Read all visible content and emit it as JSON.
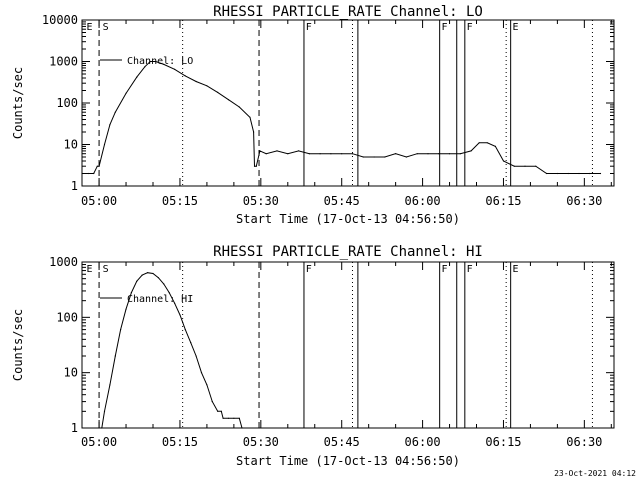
{
  "chart_data": [
    {
      "type": "line",
      "title": "RHESSI PARTICLE_RATE Channel: LO",
      "xlabel": "Start Time (17-Oct-13 04:56:50)",
      "ylabel": "Counts/sec",
      "yscale": "log",
      "ylim": [
        1,
        10000
      ],
      "xlim": [
        "04:56:50",
        "06:35:30"
      ],
      "yticks": [
        "1",
        "10",
        "100",
        "1000",
        "10000"
      ],
      "xticks": [
        "05:00",
        "05:15",
        "05:30",
        "05:45",
        "06:00",
        "06:15",
        "06:30"
      ],
      "series": [
        {
          "name": "Channel: LO",
          "x": [
            "04:56:50",
            "04:58:00",
            "04:59:00",
            "04:59:40",
            "05:00:00",
            "05:01:00",
            "05:02:00",
            "05:03:00",
            "05:05:00",
            "05:07:00",
            "05:08:30",
            "05:09:30",
            "05:10:30",
            "05:12:00",
            "05:14:00",
            "05:16:00",
            "05:18:00",
            "05:20:00",
            "05:22:00",
            "05:24:00",
            "05:26:00",
            "05:28:00",
            "05:28:40",
            "05:28:50",
            "05:29:10",
            "05:29:50",
            "05:31:00",
            "05:33:00",
            "05:35:00",
            "05:37:00",
            "05:39:00",
            "05:41:00",
            "05:43:00",
            "05:45:00",
            "05:47:00",
            "05:49:00",
            "05:51:00",
            "05:53:00",
            "05:55:00",
            "05:57:00",
            "05:59:00",
            "06:01:00",
            "06:03:00",
            "06:05:00",
            "06:07:00",
            "06:09:00",
            "06:10:30",
            "06:12:00",
            "06:13:30",
            "06:15:00",
            "06:17:00",
            "06:19:00",
            "06:21:00",
            "06:23:00",
            "06:25:00",
            "06:27:00",
            "06:29:00",
            "06:31:00",
            "06:33:00"
          ],
          "y": [
            2,
            2,
            2,
            3,
            3,
            10,
            30,
            60,
            170,
            420,
            750,
            1000,
            1000,
            850,
            650,
            450,
            330,
            260,
            180,
            120,
            80,
            45,
            20,
            3,
            3,
            7,
            6,
            7,
            6,
            7,
            6,
            6,
            6,
            6,
            6,
            5,
            5,
            5,
            6,
            5,
            6,
            6,
            6,
            6,
            6,
            7,
            11,
            11,
            9,
            4,
            3,
            3,
            3,
            2,
            2,
            2,
            2,
            2,
            2
          ]
        }
      ],
      "markers": {
        "dashed": [
          "05:00:00",
          "05:29:40"
        ],
        "dotted": [
          "05:15:30",
          "05:47:00",
          "06:15:30",
          "06:31:30"
        ],
        "solid": [
          "05:38:00",
          "05:48:00",
          "06:03:10",
          "06:06:20",
          "06:07:50",
          "06:16:20"
        ],
        "labels": [
          {
            "text": "E",
            "at": "04:57:40"
          },
          {
            "text": "S",
            "at": "05:00:40"
          },
          {
            "text": "F",
            "at": "05:38:20"
          },
          {
            "text": "F",
            "at": "06:03:30"
          },
          {
            "text": "F",
            "at": "06:08:10"
          },
          {
            "text": "E",
            "at": "06:16:40"
          }
        ]
      },
      "legend": {
        "placement": "top-left",
        "label": "Channel: LO"
      }
    },
    {
      "type": "line",
      "title": "RHESSI PARTICLE_RATE Channel: HI",
      "xlabel": "Start Time (17-Oct-13 04:56:50)",
      "ylabel": "Counts/sec",
      "yscale": "log",
      "ylim": [
        1,
        1000
      ],
      "xlim": [
        "04:56:50",
        "06:35:30"
      ],
      "yticks": [
        "1",
        "10",
        "100",
        "1000"
      ],
      "xticks": [
        "05:00",
        "05:15",
        "05:30",
        "05:45",
        "06:00",
        "06:15",
        "06:30"
      ],
      "series": [
        {
          "name": "Channel: HI",
          "x": [
            "05:00:30",
            "05:01:00",
            "05:02:00",
            "05:03:00",
            "05:04:00",
            "05:05:00",
            "05:06:00",
            "05:07:00",
            "05:08:00",
            "05:09:00",
            "05:10:00",
            "05:11:00",
            "05:12:00",
            "05:13:00",
            "05:14:00",
            "05:15:00",
            "05:16:00",
            "05:17:00",
            "05:18:00",
            "05:19:00",
            "05:20:00",
            "05:21:00",
            "05:22:00",
            "05:22:40",
            "05:23:00",
            "05:24:00",
            "05:25:00",
            "05:26:00",
            "05:26:30"
          ],
          "y": [
            1,
            2,
            6,
            20,
            60,
            140,
            280,
            450,
            580,
            640,
            620,
            520,
            400,
            280,
            180,
            110,
            60,
            35,
            20,
            10,
            6,
            3,
            2,
            2,
            1.5,
            1.5,
            1.5,
            1.5,
            1
          ]
        }
      ],
      "markers": {
        "dashed": [
          "05:00:00",
          "05:29:40"
        ],
        "dotted": [
          "05:15:30",
          "05:47:00",
          "06:15:30",
          "06:31:30"
        ],
        "solid": [
          "05:38:00",
          "05:48:00",
          "06:03:10",
          "06:06:20",
          "06:07:50",
          "06:16:20"
        ],
        "labels": [
          {
            "text": "E",
            "at": "04:57:40"
          },
          {
            "text": "S",
            "at": "05:00:40"
          },
          {
            "text": "F",
            "at": "05:38:20"
          },
          {
            "text": "F",
            "at": "06:03:30"
          },
          {
            "text": "F",
            "at": "06:08:10"
          },
          {
            "text": "E",
            "at": "06:16:40"
          }
        ]
      },
      "legend": {
        "placement": "top-left",
        "label": "Channel: HI"
      }
    }
  ],
  "footer": {
    "timestamp": "23-Oct-2021 04:12"
  }
}
